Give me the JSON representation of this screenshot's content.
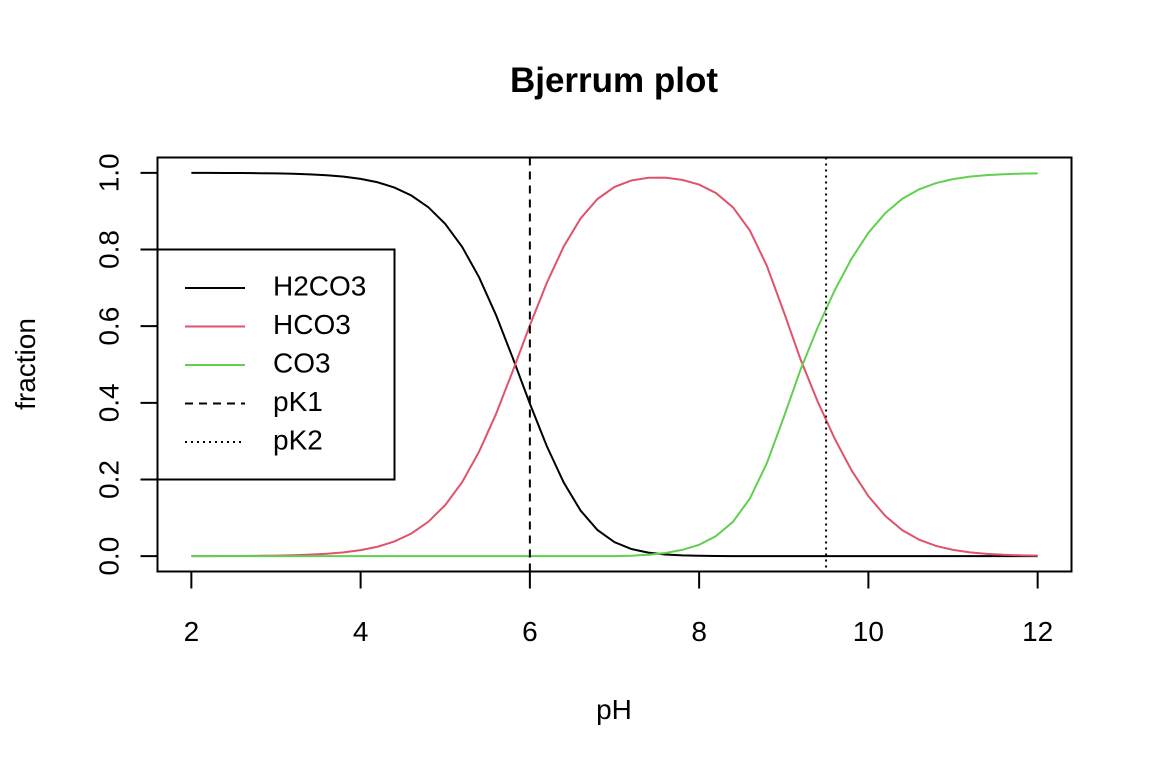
{
  "chart_data": {
    "type": "line",
    "title": "Bjerrum plot",
    "xlabel": "pH",
    "ylabel": "fraction",
    "xlim": [
      1.6,
      12.4
    ],
    "ylim": [
      -0.04,
      1.04
    ],
    "x_ticks": [
      "2",
      "4",
      "6",
      "8",
      "10",
      "12"
    ],
    "y_ticks": [
      "0.0",
      "0.2",
      "0.4",
      "0.6",
      "0.8",
      "1.0"
    ],
    "grid": false,
    "legend_position": "left",
    "x": [
      2.0,
      2.2,
      2.4,
      2.6,
      2.8,
      3.0,
      3.2,
      3.4,
      3.6,
      3.8,
      4.0,
      4.2,
      4.4,
      4.6,
      4.8,
      5.0,
      5.2,
      5.4,
      5.6,
      5.8,
      6.0,
      6.2,
      6.4,
      6.6,
      6.8,
      7.0,
      7.2,
      7.4,
      7.6,
      7.8,
      8.0,
      8.2,
      8.4,
      8.6,
      8.8,
      9.0,
      9.2,
      9.4,
      9.6,
      9.8,
      10.0,
      10.2,
      10.4,
      10.6,
      10.8,
      11.0,
      11.2,
      11.4,
      11.6,
      11.8,
      12.0
    ],
    "series": [
      {
        "name": "H2CO3",
        "color": "#000000",
        "dash": "solid",
        "values": [
          0.9999,
          0.9998,
          0.9996,
          0.9994,
          0.999,
          0.9985,
          0.9976,
          0.996,
          0.9937,
          0.9901,
          0.9843,
          0.9754,
          0.9616,
          0.9408,
          0.9103,
          0.8667,
          0.8067,
          0.7275,
          0.629,
          0.5158,
          0.3979,
          0.2871,
          0.1921,
          0.1186,
          0.068,
          0.0365,
          0.0186,
          0.0092,
          0.0044,
          0.0021,
          0.001,
          0.0004,
          0.0002,
          0.0001,
          0.0,
          0.0,
          0.0,
          0.0,
          0.0,
          0.0,
          0.0,
          0.0,
          0.0,
          0.0,
          0.0,
          0.0,
          0.0,
          0.0,
          0.0,
          0.0,
          0.0
        ]
      },
      {
        "name": "HCO3",
        "color": "#DF536B",
        "dash": "solid",
        "values": [
          0.0001,
          0.0002,
          0.0004,
          0.0006,
          0.001,
          0.0015,
          0.0024,
          0.004,
          0.0063,
          0.0099,
          0.0157,
          0.0246,
          0.0384,
          0.0592,
          0.0897,
          0.1333,
          0.1933,
          0.2725,
          0.371,
          0.4842,
          0.6021,
          0.7129,
          0.8079,
          0.8814,
          0.932,
          0.9633,
          0.9802,
          0.9871,
          0.9874,
          0.9816,
          0.9694,
          0.9471,
          0.9101,
          0.8495,
          0.7575,
          0.6376,
          0.5123,
          0.4038,
          0.3074,
          0.2243,
          0.1565,
          0.1049,
          0.0679,
          0.0429,
          0.0266,
          0.0164,
          0.01,
          0.0061,
          0.0036,
          0.0022,
          0.0014
        ]
      },
      {
        "name": "CO3",
        "color": "#61D04F",
        "dash": "solid",
        "values": [
          0.0,
          0.0,
          0.0,
          0.0,
          0.0,
          0.0,
          0.0,
          0.0,
          0.0,
          0.0,
          0.0,
          0.0,
          0.0,
          0.0,
          0.0,
          0.0,
          0.0,
          0.0,
          0.0,
          0.0,
          0.0,
          0.0,
          0.0,
          0.0,
          0.0,
          0.0002,
          0.0012,
          0.0037,
          0.0082,
          0.0163,
          0.0296,
          0.0525,
          0.0897,
          0.1504,
          0.2425,
          0.3624,
          0.4877,
          0.5962,
          0.6926,
          0.7757,
          0.8435,
          0.8951,
          0.9321,
          0.9571,
          0.9734,
          0.9836,
          0.99,
          0.9939,
          0.9964,
          0.9978,
          0.9986
        ]
      }
    ],
    "vlines": [
      {
        "name": "pK1",
        "x": 6.0,
        "dash": "dashed",
        "color": "#000000"
      },
      {
        "name": "pK2",
        "x": 9.5,
        "dash": "dotted",
        "color": "#000000"
      }
    ],
    "legend": [
      {
        "label": "H2CO3",
        "color": "#000000",
        "dash": "solid"
      },
      {
        "label": "HCO3",
        "color": "#DF536B",
        "dash": "solid"
      },
      {
        "label": "CO3",
        "color": "#61D04F",
        "dash": "solid"
      },
      {
        "label": "pK1",
        "color": "#000000",
        "dash": "dashed"
      },
      {
        "label": "pK2",
        "color": "#000000",
        "dash": "dotted"
      }
    ]
  }
}
